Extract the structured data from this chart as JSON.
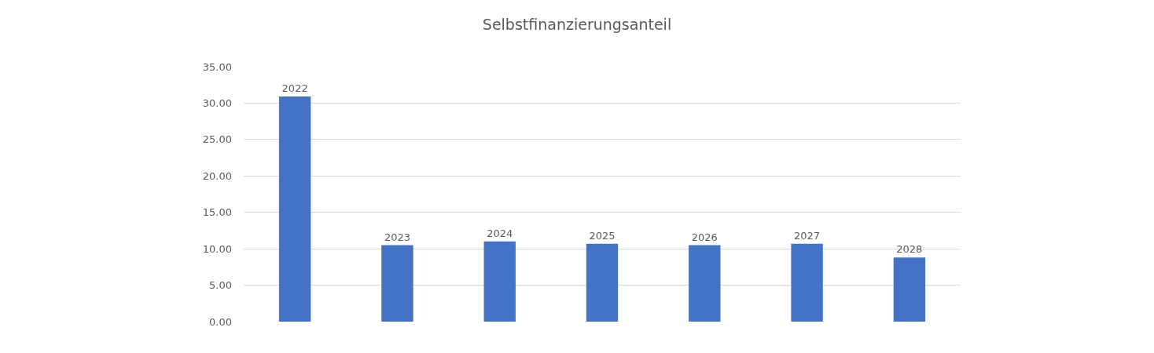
{
  "chart_data": {
    "type": "bar",
    "title": "Selbstfinanzierungsanteil",
    "categories": [
      "2022",
      "2023",
      "2024",
      "2025",
      "2026",
      "2027",
      "2028"
    ],
    "values": [
      30.9,
      10.5,
      11.0,
      10.7,
      10.5,
      10.7,
      8.8
    ],
    "color": "#4472c4",
    "ylim": [
      0,
      35
    ],
    "yticks": [
      {
        "value": 0,
        "label": "0.00"
      },
      {
        "value": 5,
        "label": "5.00"
      },
      {
        "value": 10,
        "label": "10.00"
      },
      {
        "value": 15,
        "label": "15.00"
      },
      {
        "value": 20,
        "label": "20.00"
      },
      {
        "value": 25,
        "label": "25.00"
      },
      {
        "value": 30,
        "label": "30.00"
      },
      {
        "value": 35,
        "label": "35.00"
      }
    ],
    "grid": "y",
    "legend": false,
    "tick_labels": "y"
  }
}
